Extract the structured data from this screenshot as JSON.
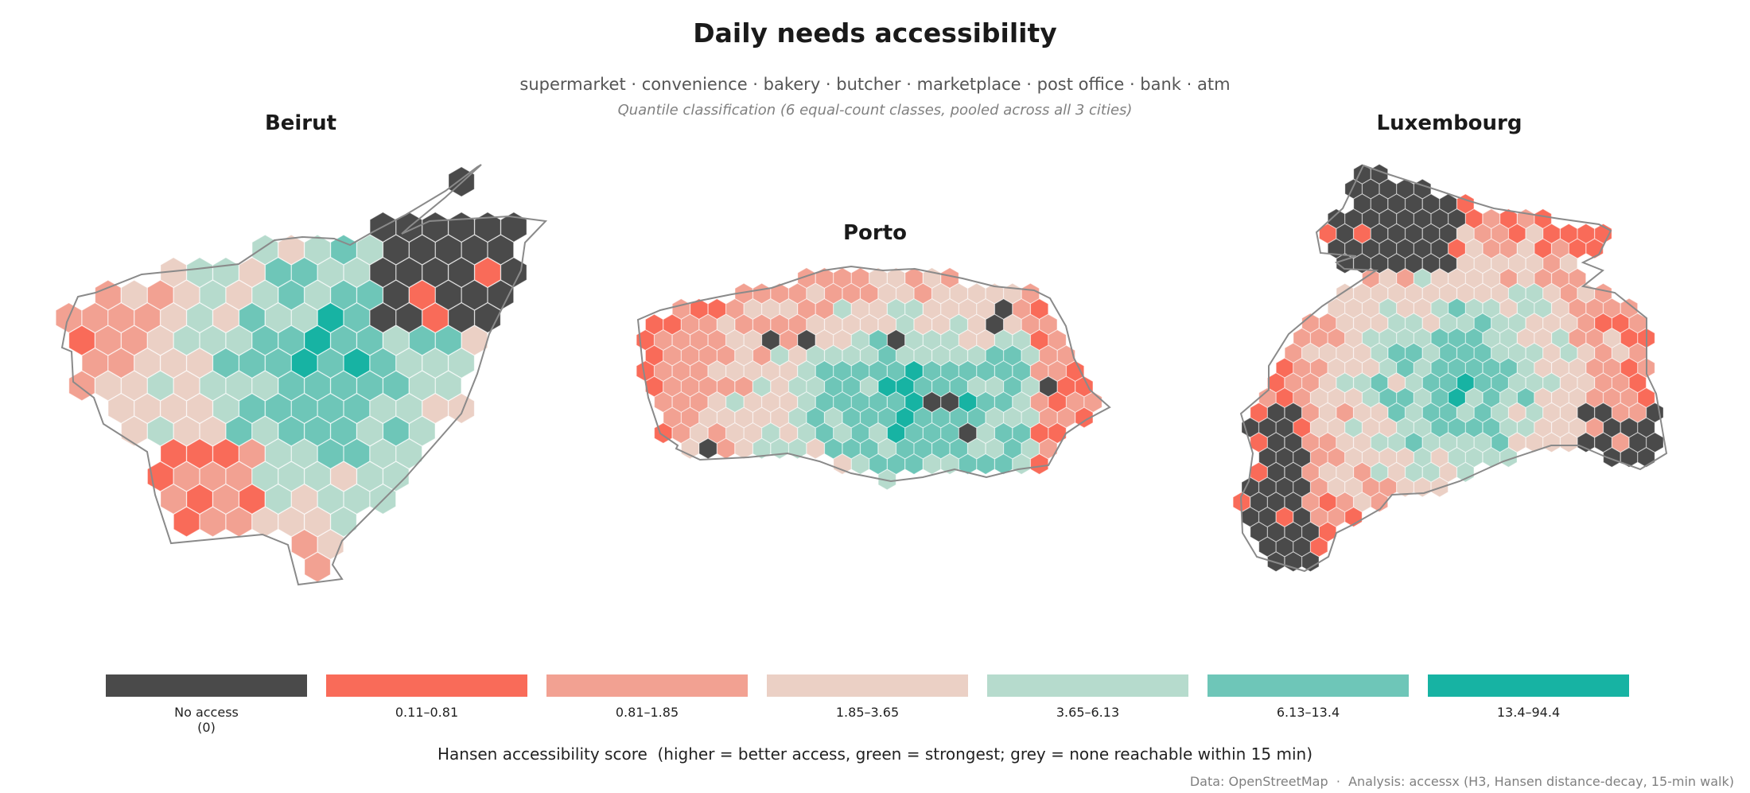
{
  "header": {
    "title": "Daily needs accessibility",
    "subtitle": "supermarket · convenience · bakery · butcher · marketplace · post office · bank · atm",
    "note": "Quantile classification (6 equal-count classes, pooled across all 3 cities)"
  },
  "cities": [
    {
      "name": "Beirut"
    },
    {
      "name": "Porto"
    },
    {
      "name": "Luxembourg"
    }
  ],
  "legend": {
    "classes": [
      {
        "label": "No access\n(0)",
        "color": "#4a4a4a"
      },
      {
        "label": "0.11–0.81",
        "color": "#f96b59"
      },
      {
        "label": "0.81–1.85",
        "color": "#f2a192"
      },
      {
        "label": "1.85–3.65",
        "color": "#ebd0c5"
      },
      {
        "label": "3.65–6.13",
        "color": "#b6dbcd"
      },
      {
        "label": "6.13–13.4",
        "color": "#6ec6b8"
      },
      {
        "label": "13.4–94.4",
        "color": "#17b3a3"
      }
    ],
    "caption": "Hansen accessibility score  (higher = better access, green = strongest; grey = none reachable within 15 min)"
  },
  "credit": "Data: OpenStreetMap  ·  Analysis: accessx (H3, Hansen distance-decay, 15-min walk)"
}
